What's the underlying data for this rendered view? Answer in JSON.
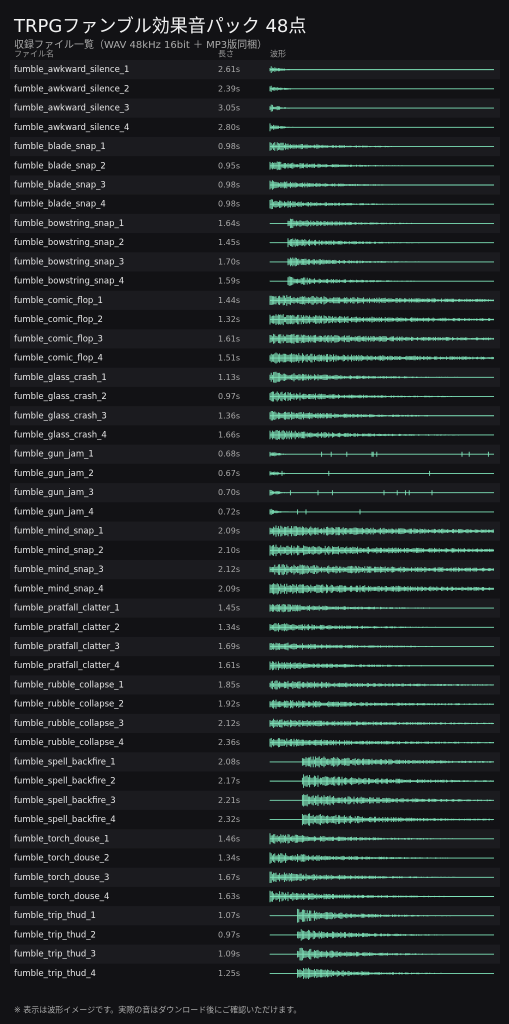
{
  "header": {
    "title": "TRPGファンブル効果音パック 48点",
    "subtitle": "収録ファイル一覧（WAV 48kHz 16bit ＋ MP3版同梱）",
    "columns": [
      "ファイル名",
      "長さ",
      "波形"
    ]
  },
  "table": {
    "rows": [
      [
        "fumble_awkward_silence_1",
        "2.61s"
      ],
      [
        "fumble_awkward_silence_2",
        "2.39s"
      ],
      [
        "fumble_awkward_silence_3",
        "3.05s"
      ],
      [
        "fumble_awkward_silence_4",
        "2.80s"
      ],
      [
        "fumble_blade_snap_1",
        "0.98s"
      ],
      [
        "fumble_blade_snap_2",
        "0.95s"
      ],
      [
        "fumble_blade_snap_3",
        "0.98s"
      ],
      [
        "fumble_blade_snap_4",
        "0.98s"
      ],
      [
        "fumble_bowstring_snap_1",
        "1.64s"
      ],
      [
        "fumble_bowstring_snap_2",
        "1.45s"
      ],
      [
        "fumble_bowstring_snap_3",
        "1.70s"
      ],
      [
        "fumble_bowstring_snap_4",
        "1.59s"
      ],
      [
        "fumble_comic_flop_1",
        "1.44s"
      ],
      [
        "fumble_comic_flop_2",
        "1.32s"
      ],
      [
        "fumble_comic_flop_3",
        "1.61s"
      ],
      [
        "fumble_comic_flop_4",
        "1.51s"
      ],
      [
        "fumble_glass_crash_1",
        "1.13s"
      ],
      [
        "fumble_glass_crash_2",
        "0.97s"
      ],
      [
        "fumble_glass_crash_3",
        "1.36s"
      ],
      [
        "fumble_glass_crash_4",
        "1.66s"
      ],
      [
        "fumble_gun_jam_1",
        "0.68s"
      ],
      [
        "fumble_gun_jam_2",
        "0.67s"
      ],
      [
        "fumble_gun_jam_3",
        "0.70s"
      ],
      [
        "fumble_gun_jam_4",
        "0.72s"
      ],
      [
        "fumble_mind_snap_1",
        "2.09s"
      ],
      [
        "fumble_mind_snap_2",
        "2.10s"
      ],
      [
        "fumble_mind_snap_3",
        "2.12s"
      ],
      [
        "fumble_mind_snap_4",
        "2.09s"
      ],
      [
        "fumble_pratfall_clatter_1",
        "1.45s"
      ],
      [
        "fumble_pratfall_clatter_2",
        "1.34s"
      ],
      [
        "fumble_pratfall_clatter_3",
        "1.69s"
      ],
      [
        "fumble_pratfall_clatter_4",
        "1.61s"
      ],
      [
        "fumble_rubble_collapse_1",
        "1.85s"
      ],
      [
        "fumble_rubble_collapse_2",
        "1.92s"
      ],
      [
        "fumble_rubble_collapse_3",
        "2.12s"
      ],
      [
        "fumble_rubble_collapse_4",
        "2.36s"
      ],
      [
        "fumble_spell_backfire_1",
        "2.08s"
      ],
      [
        "fumble_spell_backfire_2",
        "2.17s"
      ],
      [
        "fumble_spell_backfire_3",
        "2.21s"
      ],
      [
        "fumble_spell_backfire_4",
        "2.32s"
      ],
      [
        "fumble_torch_douse_1",
        "1.46s"
      ],
      [
        "fumble_torch_douse_2",
        "1.34s"
      ],
      [
        "fumble_torch_douse_3",
        "1.67s"
      ],
      [
        "fumble_torch_douse_4",
        "1.63s"
      ],
      [
        "fumble_trip_thud_1",
        "1.07s"
      ],
      [
        "fumble_trip_thud_2",
        "0.97s"
      ],
      [
        "fumble_trip_thud_3",
        "1.09s"
      ],
      [
        "fumble_trip_thud_4",
        "1.25s"
      ]
    ]
  },
  "footer": "※ 表示は波形イメージです。実際の音はダウンロード後にご確認いただけます。"
}
